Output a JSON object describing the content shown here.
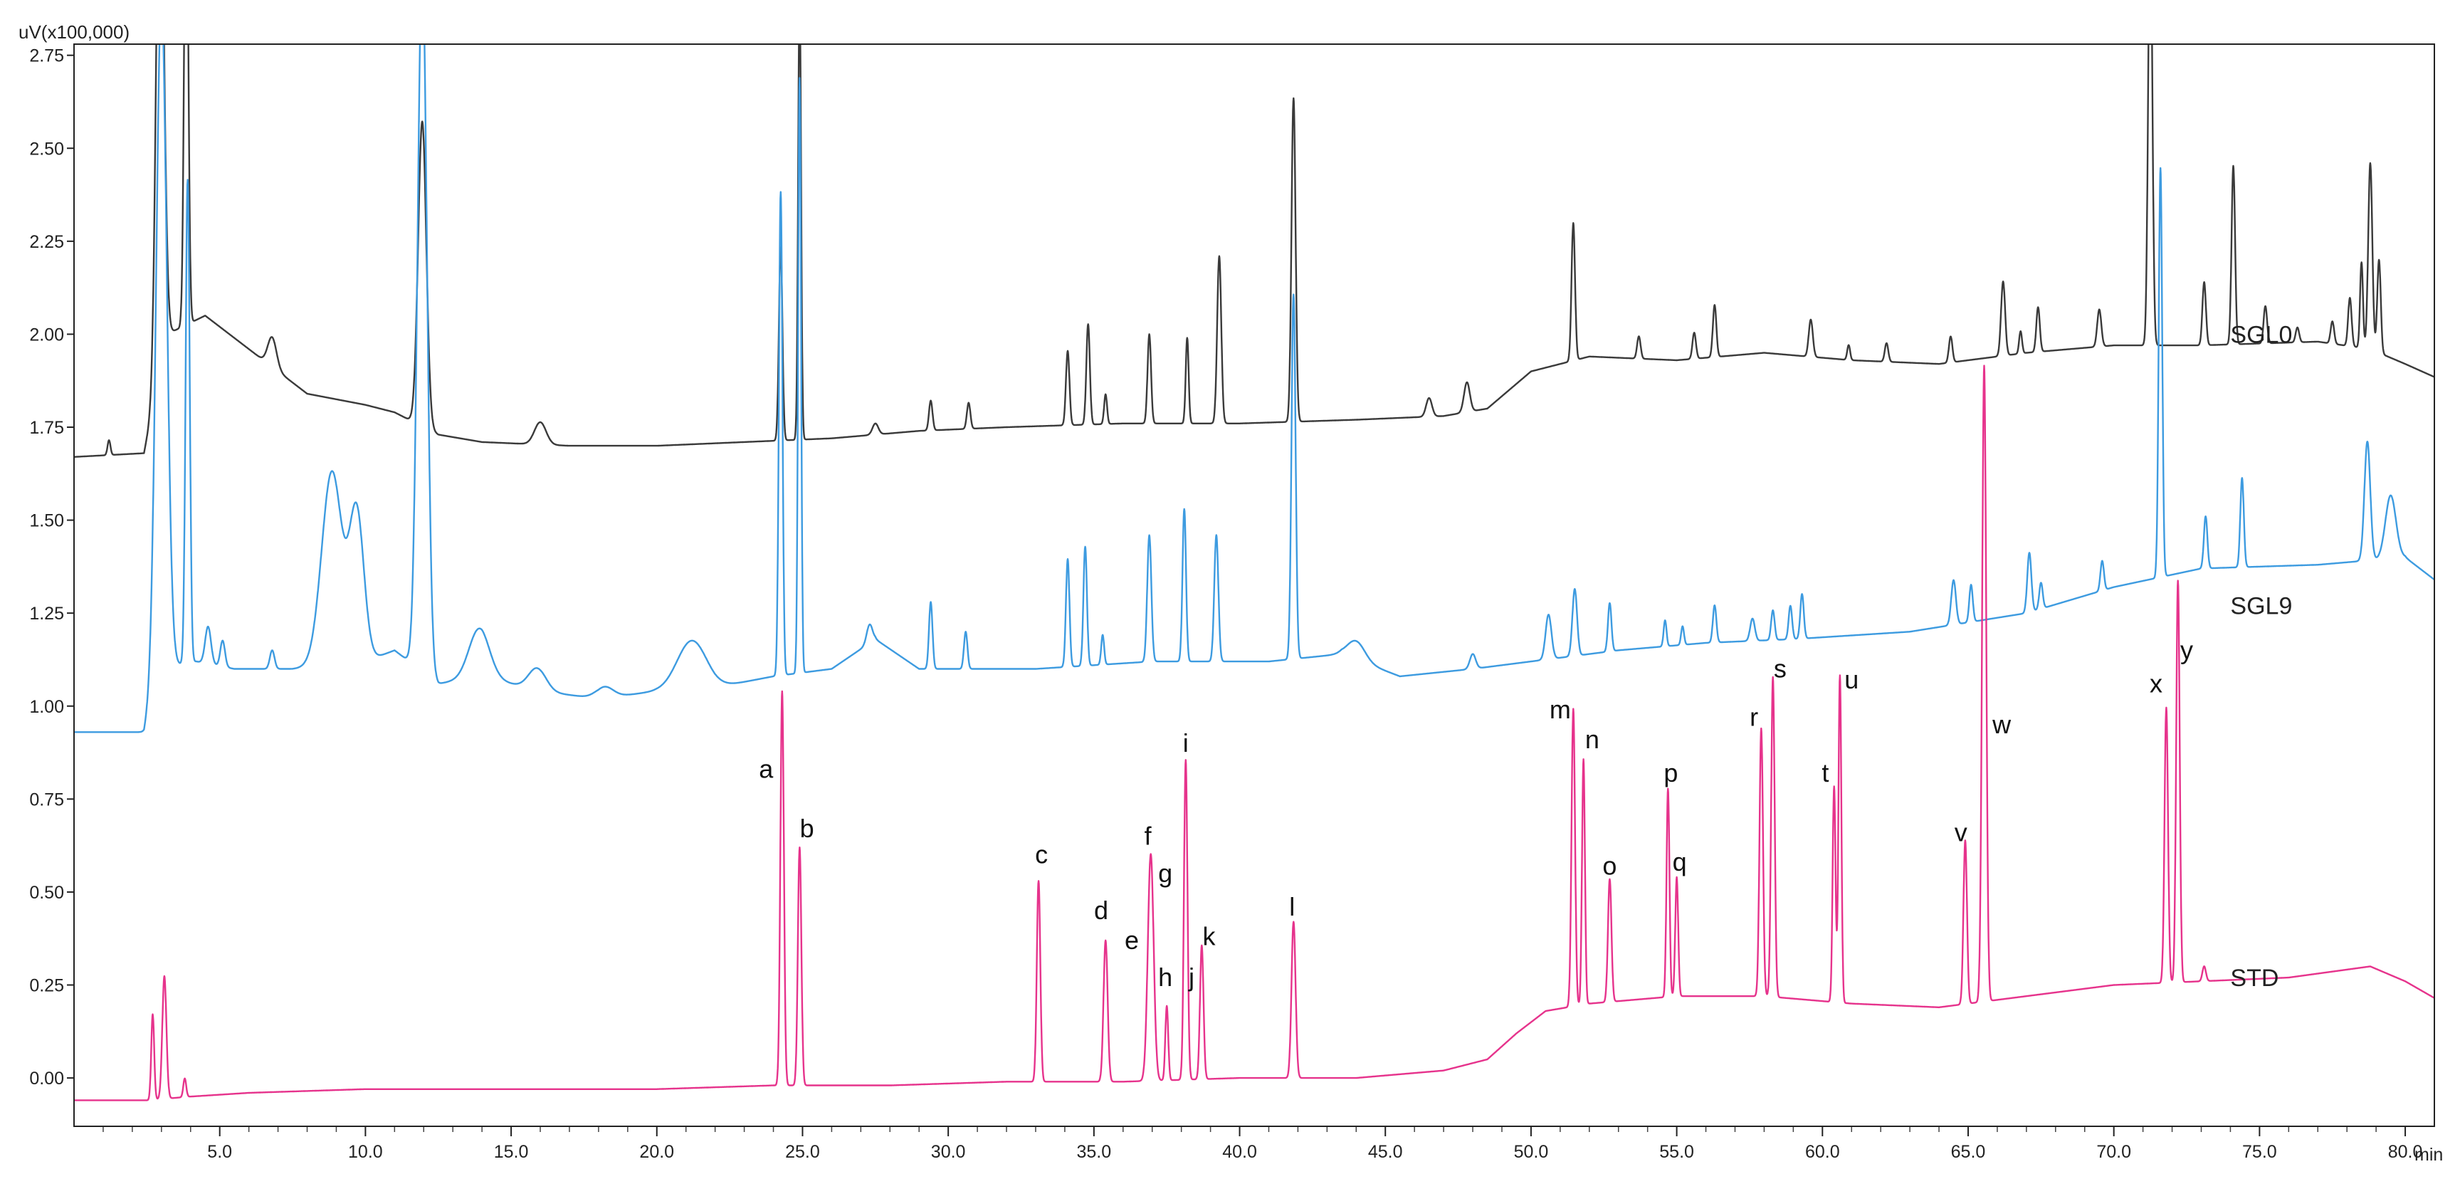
{
  "chart_data": {
    "type": "line",
    "title": "",
    "y_unit_label": "uV(x100,000)",
    "x_unit_label": "min",
    "xlim": [
      0.0,
      81.0
    ],
    "ylim": [
      -0.13,
      2.78
    ],
    "x_ticks": [
      5.0,
      10.0,
      15.0,
      20.0,
      25.0,
      30.0,
      35.0,
      40.0,
      45.0,
      50.0,
      55.0,
      60.0,
      65.0,
      70.0,
      75.0,
      80.0
    ],
    "x_tick_labels": [
      "5.0",
      "10.0",
      "15.0",
      "20.0",
      "25.0",
      "30.0",
      "35.0",
      "40.0",
      "45.0",
      "50.0",
      "55.0",
      "60.0",
      "65.0",
      "70.0",
      "75.0",
      "80.0"
    ],
    "y_ticks": [
      0.0,
      0.25,
      0.5,
      0.75,
      1.0,
      1.25,
      1.5,
      1.75,
      2.0,
      2.25,
      2.5,
      2.75
    ],
    "y_tick_labels": [
      "0.00",
      "0.25",
      "0.50",
      "0.75",
      "1.00",
      "1.25",
      "1.50",
      "1.75",
      "2.00",
      "2.25",
      "2.50",
      "2.75"
    ],
    "grid": false,
    "series": [
      {
        "name": "SGL0",
        "color": "#3a3a3a",
        "label_x": 74.0,
        "label_y": 2.0,
        "baseline": [
          [
            0,
            1.67
          ],
          [
            2.4,
            1.68
          ],
          [
            3.2,
            2.0
          ],
          [
            4.5,
            2.05
          ],
          [
            6.0,
            1.96
          ],
          [
            8.0,
            1.84
          ],
          [
            10.0,
            1.81
          ],
          [
            11.0,
            1.79
          ],
          [
            12.5,
            1.73
          ],
          [
            14.0,
            1.71
          ],
          [
            17.0,
            1.7
          ],
          [
            20.0,
            1.7
          ],
          [
            23.0,
            1.71
          ],
          [
            26.0,
            1.72
          ],
          [
            29.0,
            1.74
          ],
          [
            32.0,
            1.75
          ],
          [
            36.0,
            1.76
          ],
          [
            40.0,
            1.76
          ],
          [
            44.0,
            1.77
          ],
          [
            47.0,
            1.78
          ],
          [
            48.5,
            1.8
          ],
          [
            50.0,
            1.9
          ],
          [
            52.0,
            1.94
          ],
          [
            55.0,
            1.93
          ],
          [
            58.0,
            1.95
          ],
          [
            61.0,
            1.93
          ],
          [
            64.0,
            1.92
          ],
          [
            67.0,
            1.95
          ],
          [
            70.0,
            1.97
          ],
          [
            73.0,
            1.97
          ],
          [
            77.0,
            1.98
          ],
          [
            78.8,
            1.96
          ],
          [
            80.0,
            1.92
          ],
          [
            82.0,
            1.85
          ],
          [
            84.0,
            1.8
          ],
          [
            86.5,
            1.76
          ]
        ],
        "peaks": [
          [
            1.2,
            0.04,
            0.05
          ],
          [
            2.95,
            1.5,
            0.13
          ],
          [
            3.85,
            1.3,
            0.07
          ],
          [
            6.8,
            0.08,
            0.15
          ],
          [
            11.95,
            0.82,
            0.14
          ],
          [
            16.0,
            0.06,
            0.2
          ],
          [
            24.25,
            0.52,
            0.06
          ],
          [
            24.9,
            1.2,
            0.05
          ],
          [
            27.5,
            0.03,
            0.1
          ],
          [
            29.4,
            0.08,
            0.06
          ],
          [
            30.7,
            0.07,
            0.06
          ],
          [
            34.1,
            0.2,
            0.06
          ],
          [
            34.8,
            0.27,
            0.06
          ],
          [
            35.4,
            0.08,
            0.05
          ],
          [
            36.9,
            0.24,
            0.06
          ],
          [
            38.2,
            0.23,
            0.05
          ],
          [
            39.3,
            0.45,
            0.07
          ],
          [
            41.85,
            0.87,
            0.07
          ],
          [
            46.5,
            0.05,
            0.1
          ],
          [
            47.8,
            0.08,
            0.1
          ],
          [
            51.45,
            0.37,
            0.06
          ],
          [
            53.7,
            0.06,
            0.06
          ],
          [
            55.6,
            0.07,
            0.06
          ],
          [
            56.3,
            0.14,
            0.06
          ],
          [
            59.6,
            0.1,
            0.07
          ],
          [
            60.9,
            0.04,
            0.05
          ],
          [
            62.2,
            0.05,
            0.06
          ],
          [
            64.4,
            0.07,
            0.06
          ],
          [
            66.2,
            0.2,
            0.07
          ],
          [
            66.8,
            0.06,
            0.05
          ],
          [
            67.4,
            0.12,
            0.06
          ],
          [
            69.5,
            0.1,
            0.07
          ],
          [
            71.25,
            1.2,
            0.07
          ],
          [
            73.1,
            0.17,
            0.06
          ],
          [
            74.1,
            0.48,
            0.06
          ],
          [
            75.2,
            0.1,
            0.06
          ],
          [
            76.3,
            0.04,
            0.06
          ],
          [
            77.5,
            0.06,
            0.06
          ],
          [
            78.1,
            0.13,
            0.06
          ],
          [
            78.5,
            0.23,
            0.05
          ],
          [
            78.8,
            0.5,
            0.07
          ],
          [
            79.1,
            0.25,
            0.06
          ]
        ]
      },
      {
        "name": "SGL9",
        "color": "#3d9be0",
        "label_x": 74.0,
        "label_y": 1.27,
        "baseline": [
          [
            0,
            0.93
          ],
          [
            2.4,
            0.93
          ],
          [
            2.9,
            1.1
          ],
          [
            4.2,
            1.12
          ],
          [
            5.5,
            1.1
          ],
          [
            7.5,
            1.1
          ],
          [
            10.0,
            1.12
          ],
          [
            11.0,
            1.15
          ],
          [
            12.5,
            1.06
          ],
          [
            14.0,
            1.08
          ],
          [
            16.0,
            1.04
          ],
          [
            18.0,
            1.02
          ],
          [
            20.0,
            1.04
          ],
          [
            22.0,
            1.05
          ],
          [
            24.0,
            1.08
          ],
          [
            26.0,
            1.1
          ],
          [
            27.5,
            1.18
          ],
          [
            29.0,
            1.1
          ],
          [
            33.0,
            1.1
          ],
          [
            37.0,
            1.12
          ],
          [
            41.0,
            1.12
          ],
          [
            43.5,
            1.14
          ],
          [
            45.5,
            1.08
          ],
          [
            48.0,
            1.1
          ],
          [
            50.0,
            1.12
          ],
          [
            53.0,
            1.15
          ],
          [
            56.0,
            1.17
          ],
          [
            59.0,
            1.18
          ],
          [
            63.0,
            1.2
          ],
          [
            67.0,
            1.25
          ],
          [
            70.0,
            1.32
          ],
          [
            73.0,
            1.37
          ],
          [
            77.0,
            1.38
          ],
          [
            80.0,
            1.4
          ],
          [
            82.0,
            1.28
          ],
          [
            84.0,
            1.13
          ],
          [
            86.5,
            1.05
          ]
        ],
        "peaks": [
          [
            3.0,
            1.8,
            0.18
          ],
          [
            3.9,
            1.3,
            0.07
          ],
          [
            4.6,
            0.1,
            0.1
          ],
          [
            5.1,
            0.07,
            0.08
          ],
          [
            6.8,
            0.05,
            0.08
          ],
          [
            8.85,
            0.52,
            0.35
          ],
          [
            9.7,
            0.4,
            0.25
          ],
          [
            11.95,
            1.9,
            0.16
          ],
          [
            13.9,
            0.13,
            0.35
          ],
          [
            15.9,
            0.06,
            0.3
          ],
          [
            18.2,
            0.03,
            0.3
          ],
          [
            21.2,
            0.13,
            0.5
          ],
          [
            24.25,
            1.3,
            0.06
          ],
          [
            24.9,
            1.6,
            0.05
          ],
          [
            27.3,
            0.05,
            0.1
          ],
          [
            29.4,
            0.18,
            0.06
          ],
          [
            30.6,
            0.1,
            0.06
          ],
          [
            34.1,
            0.29,
            0.06
          ],
          [
            34.7,
            0.32,
            0.06
          ],
          [
            35.3,
            0.08,
            0.05
          ],
          [
            36.9,
            0.34,
            0.07
          ],
          [
            38.1,
            0.41,
            0.06
          ],
          [
            39.2,
            0.34,
            0.07
          ],
          [
            41.85,
            0.98,
            0.07
          ],
          [
            44.0,
            0.05,
            0.3
          ],
          [
            48.0,
            0.04,
            0.1
          ],
          [
            50.6,
            0.12,
            0.1
          ],
          [
            51.5,
            0.18,
            0.08
          ],
          [
            52.7,
            0.13,
            0.06
          ],
          [
            54.6,
            0.07,
            0.05
          ],
          [
            55.2,
            0.05,
            0.05
          ],
          [
            56.3,
            0.1,
            0.06
          ],
          [
            57.6,
            0.06,
            0.08
          ],
          [
            58.3,
            0.08,
            0.06
          ],
          [
            58.9,
            0.09,
            0.06
          ],
          [
            59.3,
            0.12,
            0.06
          ],
          [
            64.5,
            0.12,
            0.08
          ],
          [
            65.1,
            0.1,
            0.06
          ],
          [
            67.1,
            0.16,
            0.07
          ],
          [
            67.5,
            0.07,
            0.06
          ],
          [
            69.6,
            0.08,
            0.06
          ],
          [
            71.6,
            1.1,
            0.06
          ],
          [
            73.15,
            0.14,
            0.06
          ],
          [
            74.4,
            0.24,
            0.06
          ],
          [
            78.7,
            0.32,
            0.1
          ],
          [
            79.5,
            0.17,
            0.18
          ]
        ]
      },
      {
        "name": "STD",
        "color": "#e6338c",
        "label_x": 74.0,
        "label_y": 0.27,
        "baseline": [
          [
            0,
            -0.06
          ],
          [
            2.5,
            -0.06
          ],
          [
            4.0,
            -0.05
          ],
          [
            6.0,
            -0.04
          ],
          [
            10.0,
            -0.03
          ],
          [
            15.0,
            -0.03
          ],
          [
            20.0,
            -0.03
          ],
          [
            24.0,
            -0.02
          ],
          [
            28.0,
            -0.02
          ],
          [
            32.0,
            -0.01
          ],
          [
            36.0,
            -0.01
          ],
          [
            40.0,
            0.0
          ],
          [
            44.0,
            0.0
          ],
          [
            47.0,
            0.02
          ],
          [
            48.5,
            0.05
          ],
          [
            49.5,
            0.12
          ],
          [
            50.5,
            0.18
          ],
          [
            52.0,
            0.2
          ],
          [
            55.0,
            0.22
          ],
          [
            58.0,
            0.22
          ],
          [
            61.0,
            0.2
          ],
          [
            64.0,
            0.19
          ],
          [
            67.0,
            0.22
          ],
          [
            70.0,
            0.25
          ],
          [
            73.0,
            0.26
          ],
          [
            76.0,
            0.27
          ],
          [
            78.8,
            0.3
          ],
          [
            80.0,
            0.26
          ],
          [
            82.0,
            0.17
          ],
          [
            84.0,
            0.1
          ],
          [
            86.5,
            0.05
          ]
        ],
        "peaks": [
          [
            2.7,
            0.23,
            0.05
          ],
          [
            3.1,
            0.33,
            0.07
          ],
          [
            3.8,
            0.05,
            0.05
          ],
          [
            24.3,
            1.06,
            0.06
          ],
          [
            24.9,
            0.64,
            0.06
          ],
          [
            33.1,
            0.54,
            0.06
          ],
          [
            35.4,
            0.38,
            0.07
          ],
          [
            36.95,
            0.61,
            0.1
          ],
          [
            37.5,
            0.2,
            0.05
          ],
          [
            38.15,
            0.86,
            0.06
          ],
          [
            38.7,
            0.36,
            0.06
          ],
          [
            41.85,
            0.42,
            0.07
          ],
          [
            51.45,
            0.8,
            0.06
          ],
          [
            51.8,
            0.66,
            0.05
          ],
          [
            52.7,
            0.33,
            0.06
          ],
          [
            54.7,
            0.56,
            0.05
          ],
          [
            55.0,
            0.32,
            0.05
          ],
          [
            57.9,
            0.72,
            0.06
          ],
          [
            58.3,
            0.86,
            0.06
          ],
          [
            60.4,
            0.58,
            0.05
          ],
          [
            60.6,
            0.88,
            0.05
          ],
          [
            64.9,
            0.44,
            0.06
          ],
          [
            65.55,
            1.71,
            0.07
          ],
          [
            71.8,
            0.74,
            0.06
          ],
          [
            72.2,
            1.08,
            0.06
          ],
          [
            73.1,
            0.04,
            0.06
          ]
        ]
      }
    ],
    "annotations": [
      {
        "text": "a",
        "x": 23.75,
        "y": 0.83
      },
      {
        "text": "b",
        "x": 25.15,
        "y": 0.67
      },
      {
        "text": "c",
        "x": 33.2,
        "y": 0.6
      },
      {
        "text": "d",
        "x": 35.25,
        "y": 0.45
      },
      {
        "text": "e",
        "x": 36.3,
        "y": 0.37
      },
      {
        "text": "f",
        "x": 36.85,
        "y": 0.65
      },
      {
        "text": "g",
        "x": 37.45,
        "y": 0.55
      },
      {
        "text": "h",
        "x": 37.45,
        "y": 0.27
      },
      {
        "text": "i",
        "x": 38.15,
        "y": 0.9
      },
      {
        "text": "j",
        "x": 38.35,
        "y": 0.27
      },
      {
        "text": "k",
        "x": 38.95,
        "y": 0.38
      },
      {
        "text": "l",
        "x": 41.8,
        "y": 0.46
      },
      {
        "text": "m",
        "x": 51.0,
        "y": 0.99
      },
      {
        "text": "n",
        "x": 52.1,
        "y": 0.91
      },
      {
        "text": "o",
        "x": 52.7,
        "y": 0.57
      },
      {
        "text": "p",
        "x": 54.8,
        "y": 0.82
      },
      {
        "text": "q",
        "x": 55.1,
        "y": 0.58
      },
      {
        "text": "r",
        "x": 57.65,
        "y": 0.97
      },
      {
        "text": "s",
        "x": 58.55,
        "y": 1.1
      },
      {
        "text": "t",
        "x": 60.1,
        "y": 0.82
      },
      {
        "text": "u",
        "x": 61.0,
        "y": 1.07
      },
      {
        "text": "v",
        "x": 64.75,
        "y": 0.66
      },
      {
        "text": "w",
        "x": 66.15,
        "y": 0.95
      },
      {
        "text": "x",
        "x": 71.45,
        "y": 1.06
      },
      {
        "text": "y",
        "x": 72.5,
        "y": 1.15
      }
    ]
  }
}
